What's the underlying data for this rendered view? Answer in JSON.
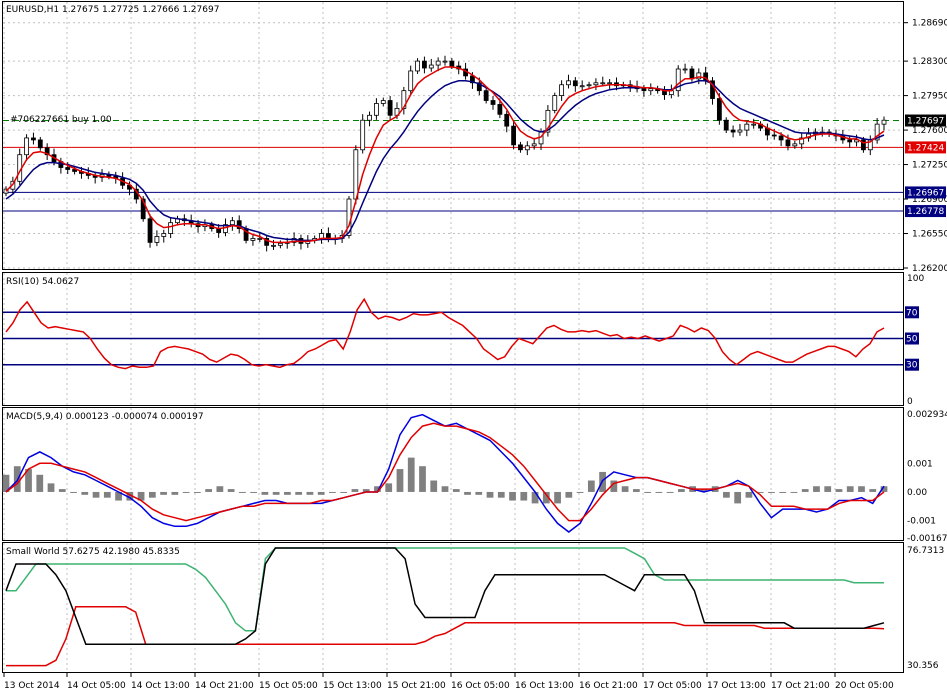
{
  "colors": {
    "background": "#ffffff",
    "grid": "#c0c0c0",
    "candle": "#000000",
    "ma_fast": "#e00000",
    "ma_slow": "#000080",
    "level": "#000080",
    "order_line": "#008000",
    "red_level": "#e00000",
    "rsi": "#e00000",
    "macd": "#0000e0",
    "signal": "#e00000",
    "histogram": "#808080",
    "sw_black": "#000000",
    "sw_red": "#e00000",
    "sw_green": "#3cb371",
    "label_navy": "#000080",
    "label_red": "#e00000",
    "label_black": "#000000"
  },
  "main": {
    "title": "EURUSD,H1  1.27675  1.27725  1.27666  1.27697",
    "order_label": "#706227661 buy 1.00",
    "price_labels": [
      "1.28690",
      "1.28300",
      "1.27950",
      "1.27600",
      "1.27250",
      "1.26900",
      "1.26550",
      "1.26200"
    ],
    "current_price": "1.27697",
    "red_level_price": "1.27424",
    "level1_price": "1.26967",
    "level2_price": "1.26778"
  },
  "rsi": {
    "title": "RSI(10) 54.0627",
    "labels": [
      "100",
      "70",
      "50",
      "30",
      "0"
    ]
  },
  "macd": {
    "title": "MACD(5,9,4) 0.000123 -0.000074 0.000197",
    "labels": [
      "0.002934",
      "0.001",
      "0.00",
      "-0.001",
      "-0.001679"
    ]
  },
  "smallworld": {
    "title": "Small World 57.6275 42.1980 45.8335",
    "labels": [
      "76.7313",
      "30.356"
    ]
  },
  "time_labels": [
    "13 Oct 2014",
    "14 Oct 05:00",
    "14 Oct 13:00",
    "14 Oct 21:00",
    "15 Oct 05:00",
    "15 Oct 13:00",
    "15 Oct 21:00",
    "16 Oct 05:00",
    "16 Oct 13:00",
    "16 Oct 21:00",
    "17 Oct 05:00",
    "17 Oct 13:00",
    "17 Oct 21:00",
    "20 Oct 05:00"
  ],
  "chart_data": [
    {
      "type": "candlestick",
      "title": "EURUSD,H1",
      "ohlc_last": {
        "open": 1.27675,
        "high": 1.27725,
        "low": 1.27666,
        "close": 1.27697
      },
      "ylim": [
        1.262,
        1.289
      ],
      "closes": [
        1.27,
        1.2708,
        1.2735,
        1.2752,
        1.275,
        1.2742,
        1.2735,
        1.2728,
        1.2722,
        1.272,
        1.2718,
        1.2716,
        1.2714,
        1.2712,
        1.2715,
        1.2713,
        1.2711,
        1.2704,
        1.27,
        1.269,
        1.267,
        1.2646,
        1.2652,
        1.2655,
        1.2666,
        1.267,
        1.2668,
        1.2665,
        1.2662,
        1.2664,
        1.266,
        1.2656,
        1.2664,
        1.2668,
        1.266,
        1.2648,
        1.265,
        1.265,
        1.2643,
        1.2643,
        1.2645,
        1.2646,
        1.265,
        1.2645,
        1.2648,
        1.265,
        1.2655,
        1.265,
        1.265,
        1.2653,
        1.269,
        1.274,
        1.277,
        1.2775,
        1.2787,
        1.279,
        1.2775,
        1.2782,
        1.28,
        1.282,
        1.283,
        1.2823,
        1.2826,
        1.283,
        1.283,
        1.2825,
        1.2822,
        1.2815,
        1.2808,
        1.28,
        1.279,
        1.2786,
        1.2776,
        1.2764,
        1.2745,
        1.274,
        1.2744,
        1.2746,
        1.2758,
        1.278,
        1.2795,
        1.2806,
        1.281,
        1.2805,
        1.2805,
        1.2806,
        1.2808,
        1.2808,
        1.2808,
        1.2805,
        1.2806,
        1.2804,
        1.2802,
        1.28,
        1.2802,
        1.28,
        1.2796,
        1.28,
        1.2822,
        1.2822,
        1.2812,
        1.2818,
        1.281,
        1.2792,
        1.277,
        1.276,
        1.2758,
        1.276,
        1.2766,
        1.2766,
        1.2762,
        1.2755,
        1.2754,
        1.275,
        1.2744,
        1.2746,
        1.2752,
        1.2756,
        1.2758,
        1.2758,
        1.2756,
        1.2754,
        1.275,
        1.2748,
        1.275,
        1.274,
        1.275,
        1.2766,
        1.277
      ],
      "ma_fast": [
        1.2698,
        1.2705,
        1.2718,
        1.273,
        1.2737,
        1.2738,
        1.2736,
        1.2732,
        1.2728,
        1.2724,
        1.2721,
        1.2718,
        1.2716,
        1.2714,
        1.2713,
        1.2712,
        1.2711,
        1.2708,
        1.2705,
        1.2698,
        1.2688,
        1.2673,
        1.2665,
        1.2661,
        1.2662,
        1.2664,
        1.2665,
        1.2665,
        1.2664,
        1.2664,
        1.2662,
        1.266,
        1.2661,
        1.2663,
        1.2662,
        1.2657,
        1.2654,
        1.2652,
        1.2648,
        1.2646,
        1.2646,
        1.2646,
        1.2647,
        1.2647,
        1.2647,
        1.2648,
        1.265,
        1.265,
        1.265,
        1.2651,
        1.2663,
        1.2688,
        1.2715,
        1.2735,
        1.2752,
        1.2765,
        1.277,
        1.2774,
        1.2783,
        1.2796,
        1.2807,
        1.2813,
        1.2817,
        1.2821,
        1.2824,
        1.2824,
        1.2823,
        1.282,
        1.2816,
        1.2811,
        1.2804,
        1.2798,
        1.279,
        1.2781,
        1.2769,
        1.2759,
        1.2754,
        1.2751,
        1.2753,
        1.2762,
        1.2773,
        1.2784,
        1.2793,
        1.2797,
        1.28,
        1.2802,
        1.2804,
        1.2805,
        1.2806,
        1.2806,
        1.2806,
        1.2805,
        1.2804,
        1.2803,
        1.2803,
        1.2802,
        1.28,
        1.28,
        1.2807,
        1.2812,
        1.2812,
        1.2814,
        1.2813,
        1.2806,
        1.2794,
        1.2783,
        1.2775,
        1.277,
        1.2769,
        1.2768,
        1.2766,
        1.2762,
        1.2759,
        1.2756,
        1.2752,
        1.275,
        1.2751,
        1.2753,
        1.2755,
        1.2756,
        1.2756,
        1.2755,
        1.2753,
        1.2751,
        1.2751,
        1.2747,
        1.2748,
        1.2754,
        1.2759
      ],
      "ma_slow": [
        1.269,
        1.2695,
        1.2703,
        1.2712,
        1.272,
        1.2725,
        1.2727,
        1.2727,
        1.2726,
        1.2725,
        1.2723,
        1.2721,
        1.2719,
        1.2717,
        1.2716,
        1.2715,
        1.2714,
        1.2712,
        1.271,
        1.2706,
        1.2699,
        1.2688,
        1.268,
        1.2674,
        1.2671,
        1.267,
        1.2669,
        1.2668,
        1.2667,
        1.2666,
        1.2665,
        1.2663,
        1.2663,
        1.2663,
        1.2663,
        1.266,
        1.2658,
        1.2656,
        1.2653,
        1.2651,
        1.265,
        1.2649,
        1.2649,
        1.2648,
        1.2648,
        1.2648,
        1.2649,
        1.2649,
        1.2649,
        1.265,
        1.2656,
        1.2669,
        1.2686,
        1.2702,
        1.2718,
        1.2731,
        1.2741,
        1.2749,
        1.2758,
        1.2769,
        1.2779,
        1.2787,
        1.2794,
        1.28,
        1.2805,
        1.2808,
        1.281,
        1.281,
        1.2809,
        1.2807,
        1.2803,
        1.2799,
        1.2794,
        1.2787,
        1.2779,
        1.2771,
        1.2765,
        1.276,
        1.2758,
        1.276,
        1.2765,
        1.2772,
        1.2779,
        1.2785,
        1.279,
        1.2794,
        1.2797,
        1.2799,
        1.2801,
        1.2802,
        1.2803,
        1.2803,
        1.2803,
        1.2803,
        1.2803,
        1.2802,
        1.2801,
        1.2801,
        1.2804,
        1.2807,
        1.2808,
        1.281,
        1.281,
        1.2807,
        1.28,
        1.2793,
        1.2787,
        1.2782,
        1.2779,
        1.2776,
        1.2773,
        1.277,
        1.2767,
        1.2764,
        1.2761,
        1.2758,
        1.2757,
        1.2757,
        1.2757,
        1.2757,
        1.2757,
        1.2756,
        1.2755,
        1.2754,
        1.2753,
        1.2751,
        1.275,
        1.2752,
        1.2755
      ]
    },
    {
      "type": "line",
      "title": "RSI(10)",
      "ylim": [
        0,
        100
      ],
      "levels": [
        70,
        50,
        30
      ],
      "values": [
        55,
        62,
        72,
        78,
        70,
        62,
        58,
        59,
        58,
        57,
        56,
        55,
        50,
        42,
        35,
        30,
        28,
        27,
        29,
        28,
        28,
        29,
        40,
        43,
        44,
        43,
        42,
        40,
        38,
        34,
        32,
        35,
        38,
        37,
        34,
        30,
        29,
        30,
        29,
        28,
        30,
        31,
        35,
        40,
        42,
        45,
        48,
        49,
        42,
        55,
        72,
        80,
        70,
        65,
        67,
        66,
        64,
        66,
        69,
        68,
        68,
        69,
        70,
        66,
        63,
        60,
        55,
        50,
        42,
        38,
        34,
        36,
        44,
        50,
        48,
        46,
        52,
        58,
        60,
        57,
        55,
        55,
        56,
        55,
        56,
        54,
        52,
        53,
        50,
        51,
        50,
        52,
        50,
        48,
        50,
        52,
        60,
        58,
        55,
        58,
        56,
        50,
        40,
        34,
        30,
        34,
        38,
        40,
        38,
        36,
        34,
        32,
        32,
        35,
        38,
        40,
        42,
        44,
        44,
        42,
        40,
        36,
        42,
        46,
        55,
        58
      ]
    },
    {
      "type": "bar+line",
      "title": "MACD(5,9,4)",
      "ylim": [
        -0.001679,
        0.002934
      ],
      "macd": [
        0.0,
        0.0004,
        0.0012,
        0.0014,
        0.0012,
        0.0009,
        0.0007,
        0.0006,
        0.0004,
        0.0002,
        0.0,
        -0.0002,
        -0.0005,
        -0.0009,
        -0.0011,
        -0.0012,
        -0.0012,
        -0.0011,
        -0.0009,
        -0.0007,
        -0.0006,
        -0.0005,
        -0.0004,
        -0.0003,
        -0.0003,
        -0.0004,
        -0.0004,
        -0.0004,
        -0.0004,
        -0.0003,
        -0.0002,
        -0.0001,
        0.0,
        0.0,
        0.0008,
        0.002,
        0.0026,
        0.0027,
        0.0025,
        0.0023,
        0.0024,
        0.0022,
        0.002,
        0.0018,
        0.0014,
        0.001,
        0.0005,
        0.0,
        -0.0006,
        -0.0011,
        -0.0014,
        -0.0011,
        -0.0004,
        0.0004,
        0.0007,
        0.0006,
        0.0005,
        0.0005,
        0.0004,
        0.0003,
        0.0002,
        0.0001,
        0.0,
        0.0001,
        0.0002,
        0.0004,
        0.0002,
        -0.0004,
        -0.0009,
        -0.0006,
        -0.0006,
        -0.0006,
        -0.0007,
        -0.0006,
        -0.0003,
        -0.0003,
        -0.0002,
        -0.0004,
        0.0002
      ],
      "signal": [
        0.0,
        0.0003,
        0.0008,
        0.001,
        0.001,
        0.0009,
        0.0008,
        0.0007,
        0.0005,
        0.0003,
        0.0001,
        -0.0001,
        -0.0003,
        -0.0006,
        -0.0008,
        -0.0009,
        -0.001,
        -0.0009,
        -0.0008,
        -0.0007,
        -0.0006,
        -0.0005,
        -0.0005,
        -0.0004,
        -0.0004,
        -0.0004,
        -0.0004,
        -0.0004,
        -0.0003,
        -0.0003,
        -0.0002,
        -0.0001,
        0.0,
        0.0,
        0.0005,
        0.0013,
        0.0019,
        0.0023,
        0.0024,
        0.0023,
        0.0023,
        0.0022,
        0.0021,
        0.0019,
        0.0016,
        0.0013,
        0.0009,
        0.0004,
        -0.0001,
        -0.0006,
        -0.001,
        -0.001,
        -0.0006,
        -0.0001,
        0.0003,
        0.0004,
        0.0005,
        0.0005,
        0.0004,
        0.0003,
        0.0002,
        0.0001,
        0.0001,
        0.0001,
        0.0002,
        0.0003,
        0.0002,
        -0.0001,
        -0.0005,
        -0.0005,
        -0.0005,
        -0.0006,
        -0.0006,
        -0.0006,
        -0.0004,
        -0.0003,
        -0.0003,
        -0.0003,
        0.0
      ],
      "histogram": [
        0.0006,
        0.0009,
        0.0008,
        0.0006,
        0.0003,
        0.0001,
        0.0,
        -0.0001,
        -0.0002,
        -0.0002,
        -0.0003,
        -0.0003,
        -0.0003,
        -0.0002,
        -0.0001,
        -0.0001,
        0.0,
        0.0,
        0.0001,
        0.0002,
        0.0001,
        0.0,
        0.0,
        -0.0001,
        -0.0001,
        -0.0001,
        -0.0001,
        -0.0001,
        -0.0001,
        0.0,
        0.0,
        0.0001,
        0.0001,
        0.0002,
        0.0003,
        0.0008,
        0.0012,
        0.0009,
        0.0004,
        0.0002,
        0.0001,
        -0.0001,
        -0.0001,
        -0.0002,
        -0.0002,
        -0.0003,
        -0.0003,
        -0.0004,
        -0.0004,
        -0.0004,
        -0.0002,
        0.0,
        0.0004,
        0.0007,
        0.0004,
        0.0002,
        0.0001,
        0.0,
        0.0,
        0.0,
        0.0001,
        0.0002,
        0.0001,
        0.0002,
        -0.0002,
        -0.0004,
        -0.0002,
        0.0,
        0.0,
        0.0,
        0.0,
        0.0001,
        0.0002,
        0.0002,
        0.0001,
        0.0002,
        0.0002,
        0.0001,
        0.0002
      ]
    },
    {
      "type": "line",
      "title": "Small World",
      "ylim": [
        30.356,
        76.7313
      ],
      "black": [
        60,
        70,
        70,
        70,
        70,
        66,
        60,
        50,
        40,
        40,
        40,
        40,
        40,
        40,
        40,
        40,
        40,
        40,
        40,
        40,
        40,
        40,
        40,
        40,
        42,
        45,
        70,
        76,
        76,
        76,
        76,
        76,
        76,
        76,
        76,
        76,
        76,
        76,
        76,
        76,
        72,
        55,
        50,
        50,
        50,
        50,
        50,
        50,
        60,
        66,
        66,
        66,
        66,
        66,
        66,
        66,
        66,
        66,
        66,
        66,
        66,
        64,
        62,
        60,
        66,
        66,
        66,
        66,
        66,
        60,
        48,
        48,
        48,
        48,
        48,
        48,
        48,
        48,
        48,
        46,
        46,
        46,
        46,
        46,
        46,
        46,
        46,
        47,
        48
      ],
      "red": [
        32,
        32,
        32,
        32,
        32,
        34,
        42,
        54,
        54,
        54,
        54,
        54,
        54,
        52,
        40,
        40,
        40,
        40,
        40,
        40,
        40,
        40,
        40,
        40,
        40,
        40,
        40,
        40,
        40,
        40,
        40,
        40,
        40,
        40,
        40,
        40,
        40,
        40,
        40,
        40,
        40,
        40,
        41,
        43,
        44,
        46,
        48,
        48,
        48,
        48,
        48,
        48,
        48,
        48,
        48,
        48,
        48,
        48,
        48,
        48,
        48,
        48,
        48,
        48,
        48,
        48,
        48,
        48,
        47,
        47,
        47,
        47,
        47,
        47,
        47,
        47,
        46,
        46,
        46,
        46,
        46,
        46,
        46,
        46,
        46,
        46,
        46,
        46,
        45.8
      ],
      "green": [
        60,
        60,
        65,
        70,
        70,
        70,
        70,
        70,
        70,
        70,
        70,
        70,
        70,
        70,
        70,
        70,
        70,
        70,
        70,
        68,
        65,
        60,
        55,
        48,
        45,
        45,
        72,
        76,
        76,
        76,
        76,
        76,
        76,
        76,
        76,
        76,
        76,
        76,
        76,
        76,
        76,
        76,
        76,
        76,
        76,
        76,
        76,
        76,
        76,
        76,
        76,
        76,
        76,
        76,
        76,
        76,
        76,
        76,
        76,
        76,
        76,
        76,
        76,
        74,
        72,
        66,
        64,
        64,
        64,
        64,
        64,
        64,
        64,
        64,
        64,
        64,
        64,
        64,
        64,
        64,
        64,
        64,
        64,
        64,
        64,
        63,
        63,
        63,
        63
      ]
    }
  ]
}
